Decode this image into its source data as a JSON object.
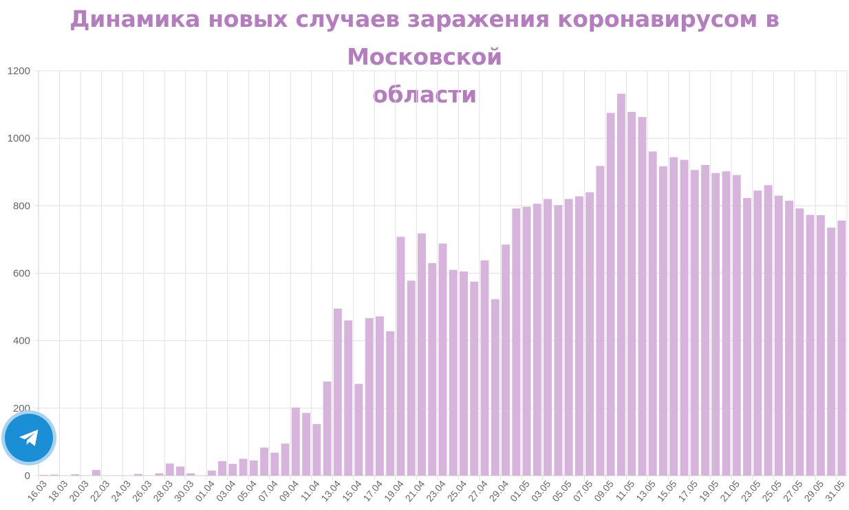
{
  "title_lines": [
    "Динамика новых случаев заражения коронавирусом в Московской",
    "области"
  ],
  "colors": {
    "title": "#b57dbf",
    "bar": "#d7b4db",
    "grid": "#e0e0e0",
    "tick": "#666666",
    "telegram": "#1a8fd6"
  },
  "telegram_button": {
    "icon": "telegram-paper-plane-icon"
  },
  "chart_data": {
    "type": "bar",
    "title": "Динамика новых случаев заражения коронавирусом в Московской области",
    "ylim": [
      0,
      1200
    ],
    "yticks": [
      0,
      200,
      400,
      600,
      800,
      1000,
      1200
    ],
    "grid": true,
    "categories": [
      "16.03",
      "17.03",
      "18.03",
      "19.03",
      "20.03",
      "21.03",
      "22.03",
      "23.03",
      "24.03",
      "25.03",
      "26.03",
      "27.03",
      "28.03",
      "29.03",
      "30.03",
      "31.03",
      "01.04",
      "02.04",
      "03.04",
      "04.04",
      "05.04",
      "06.04",
      "07.04",
      "08.04",
      "09.04",
      "10.04",
      "11.04",
      "12.04",
      "13.04",
      "14.04",
      "15.04",
      "16.04",
      "17.04",
      "18.04",
      "19.04",
      "20.04",
      "21.04",
      "22.04",
      "23.04",
      "24.04",
      "25.04",
      "26.04",
      "27.04",
      "28.04",
      "29.04",
      "30.04",
      "01.05",
      "02.05",
      "03.05",
      "04.05",
      "05.05",
      "06.05",
      "07.05",
      "08.05",
      "09.05",
      "10.05",
      "11.05",
      "12.05",
      "13.05",
      "14.05",
      "15.05",
      "16.05",
      "17.05",
      "18.05",
      "19.05",
      "20.05",
      "21.05",
      "22.05",
      "23.05",
      "24.05",
      "25.05",
      "26.05",
      "27.05",
      "28.05",
      "29.05",
      "30.05",
      "31.05"
    ],
    "x_tick_labels": [
      "16.03",
      "18.03",
      "20.03",
      "22.03",
      "24.03",
      "26.03",
      "28.03",
      "30.03",
      "01.04",
      "03.04",
      "05.04",
      "07.04",
      "09.04",
      "11.04",
      "13.04",
      "15.04",
      "17.04",
      "19.04",
      "21.04",
      "23.04",
      "25.04",
      "27.04",
      "29.04",
      "01.05",
      "03.05",
      "05.05",
      "07.05",
      "09.05",
      "11.05",
      "13.05",
      "15.05",
      "17.05",
      "19.05",
      "21.05",
      "23.05",
      "25.05",
      "27.05",
      "29.05",
      "31.05"
    ],
    "values": [
      2,
      3,
      0,
      4,
      0,
      17,
      0,
      0,
      0,
      5,
      0,
      7,
      36,
      27,
      7,
      0,
      15,
      43,
      35,
      50,
      45,
      83,
      68,
      95,
      202,
      186,
      153,
      279,
      495,
      460,
      272,
      467,
      472,
      428,
      708,
      578,
      718,
      630,
      688,
      610,
      605,
      575,
      638,
      523,
      685,
      792,
      797,
      806,
      820,
      802,
      820,
      828,
      840,
      918,
      1075,
      1132,
      1078,
      1063,
      961,
      917,
      944,
      936,
      906,
      921,
      897,
      902,
      891,
      823,
      845,
      861,
      830,
      815,
      792,
      773,
      772,
      735,
      756
    ]
  }
}
